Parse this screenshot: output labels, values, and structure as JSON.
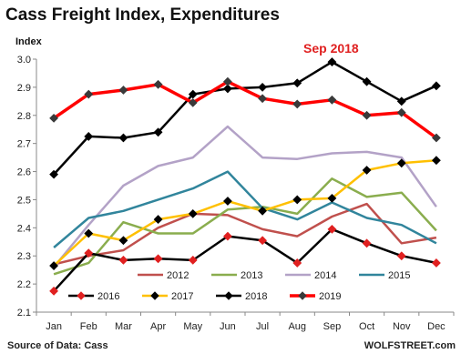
{
  "chart_data": {
    "type": "line",
    "title": "Cass Freight Index, Expenditures",
    "ylabel": "Index",
    "xlabel": "",
    "categories": [
      "Jan",
      "Feb",
      "Mar",
      "Apr",
      "May",
      "Jun",
      "Jul",
      "Aug",
      "Sep",
      "Oct",
      "Nov",
      "Dec"
    ],
    "ylim": [
      2.1,
      3.0
    ],
    "yticks": [
      "2.1",
      "2.2",
      "2.3",
      "2.4",
      "2.5",
      "2.6",
      "2.7",
      "2.8",
      "2.9",
      "3.0"
    ],
    "grid": false,
    "legend_position": "bottom",
    "series": [
      {
        "name": "2012",
        "color": "#c0504d",
        "marker": "none",
        "values": [
          2.27,
          2.3,
          2.32,
          2.4,
          2.45,
          2.445,
          2.395,
          2.37,
          2.44,
          2.485,
          2.345,
          2.365
        ]
      },
      {
        "name": "2013",
        "color": "#8aad4e",
        "marker": "none",
        "values": [
          2.235,
          2.275,
          2.42,
          2.38,
          2.38,
          2.465,
          2.475,
          2.45,
          2.575,
          2.51,
          2.525,
          2.39
        ]
      },
      {
        "name": "2014",
        "color": "#b3a2c7",
        "marker": "none",
        "values": [
          2.26,
          2.41,
          2.55,
          2.62,
          2.65,
          2.76,
          2.65,
          2.645,
          2.665,
          2.67,
          2.65,
          2.475
        ]
      },
      {
        "name": "2015",
        "color": "#31859c",
        "marker": "none",
        "values": [
          2.33,
          2.435,
          2.46,
          2.5,
          2.54,
          2.6,
          2.47,
          2.43,
          2.49,
          2.435,
          2.41,
          2.345
        ]
      },
      {
        "name": "2016",
        "color": "#000000",
        "marker": "red-diamond",
        "values": [
          2.175,
          2.31,
          2.285,
          2.29,
          2.285,
          2.37,
          2.355,
          2.275,
          2.395,
          2.345,
          2.3,
          2.275
        ]
      },
      {
        "name": "2017",
        "color": "#ffc000",
        "marker": "diamond",
        "values": [
          2.265,
          2.38,
          2.355,
          2.43,
          2.45,
          2.495,
          2.46,
          2.5,
          2.505,
          2.605,
          2.63,
          2.64
        ]
      },
      {
        "name": "2018",
        "color": "#000000",
        "marker": "diamond",
        "values": [
          2.59,
          2.725,
          2.72,
          2.74,
          2.875,
          2.895,
          2.9,
          2.915,
          2.99,
          2.92,
          2.85,
          2.905
        ]
      },
      {
        "name": "2019",
        "color": "#ff0000",
        "marker": "diamond",
        "values": [
          2.79,
          2.875,
          2.89,
          2.91,
          2.845,
          2.92,
          2.86,
          2.84,
          2.855,
          2.8,
          2.81,
          2.72
        ]
      }
    ],
    "annotation": {
      "text": "Sep 2018",
      "color": "#e02020"
    },
    "source": "Source of Data: Cass",
    "credit": "WOLFSTREET.com"
  }
}
